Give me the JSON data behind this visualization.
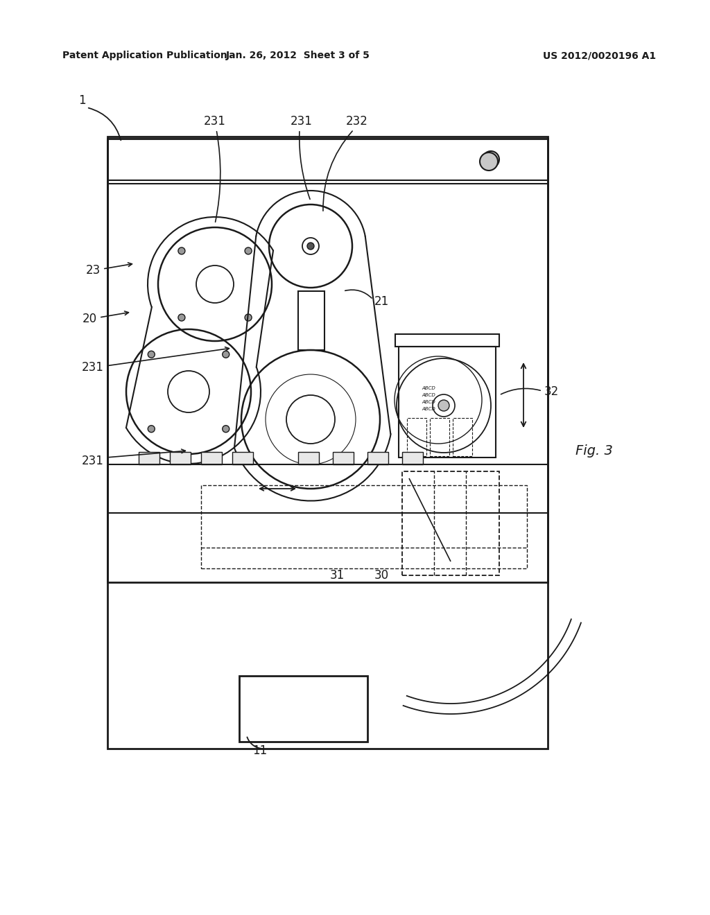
{
  "bg_color": "#ffffff",
  "line_color": "#1a1a1a",
  "header_left": "Patent Application Publication",
  "header_center": "Jan. 26, 2012  Sheet 3 of 5",
  "header_right": "US 2012/0020196 A1",
  "fig_label": "Fig. 3"
}
